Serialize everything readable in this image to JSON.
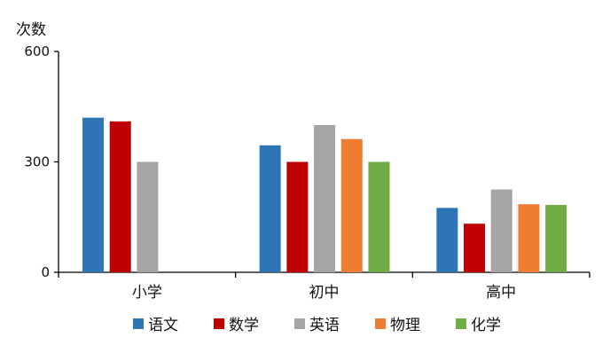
{
  "chart_data": {
    "type": "bar",
    "ylabel": "次数",
    "categories": [
      "小学",
      "初中",
      "高中"
    ],
    "ylim": [
      0,
      600
    ],
    "yticks": [
      0,
      300,
      600
    ],
    "grid": false,
    "legend_position": "bottom",
    "series": [
      {
        "name": "语文",
        "color": "#2e75b6",
        "values": [
          420,
          345,
          175
        ]
      },
      {
        "name": "数学",
        "color": "#c00000",
        "values": [
          410,
          300,
          132
        ]
      },
      {
        "name": "英语",
        "color": "#a5a5a5",
        "values": [
          300,
          400,
          225
        ]
      },
      {
        "name": "物理",
        "color": "#ed7d31",
        "values": [
          null,
          362,
          185
        ]
      },
      {
        "name": "化学",
        "color": "#70ad47",
        "values": [
          null,
          300,
          183
        ]
      }
    ]
  }
}
